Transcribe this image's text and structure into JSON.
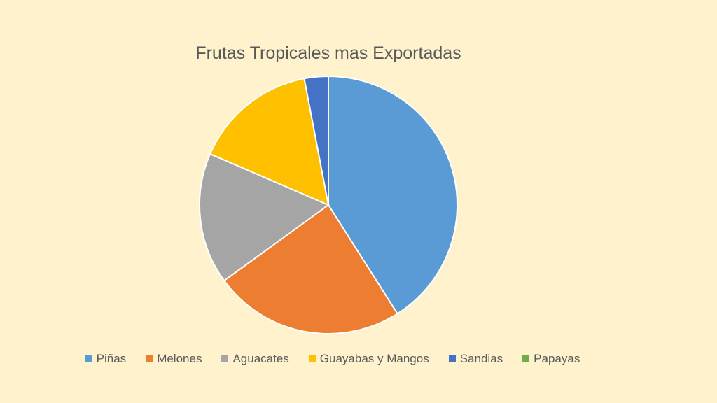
{
  "chart_data": {
    "type": "pie",
    "title": "Frutas Tropicales mas Exportadas",
    "legend_position": "bottom",
    "categories": [
      "Piñas",
      "Melones",
      "Aguacates",
      "Guayabas y Mangos",
      "Sandias",
      "Papayas"
    ],
    "values": [
      41,
      24,
      16.5,
      15.5,
      3,
      0
    ],
    "colors": [
      "#5B9BD5",
      "#ED7D31",
      "#A5A5A5",
      "#FFC000",
      "#4472C4",
      "#70AD47"
    ]
  }
}
